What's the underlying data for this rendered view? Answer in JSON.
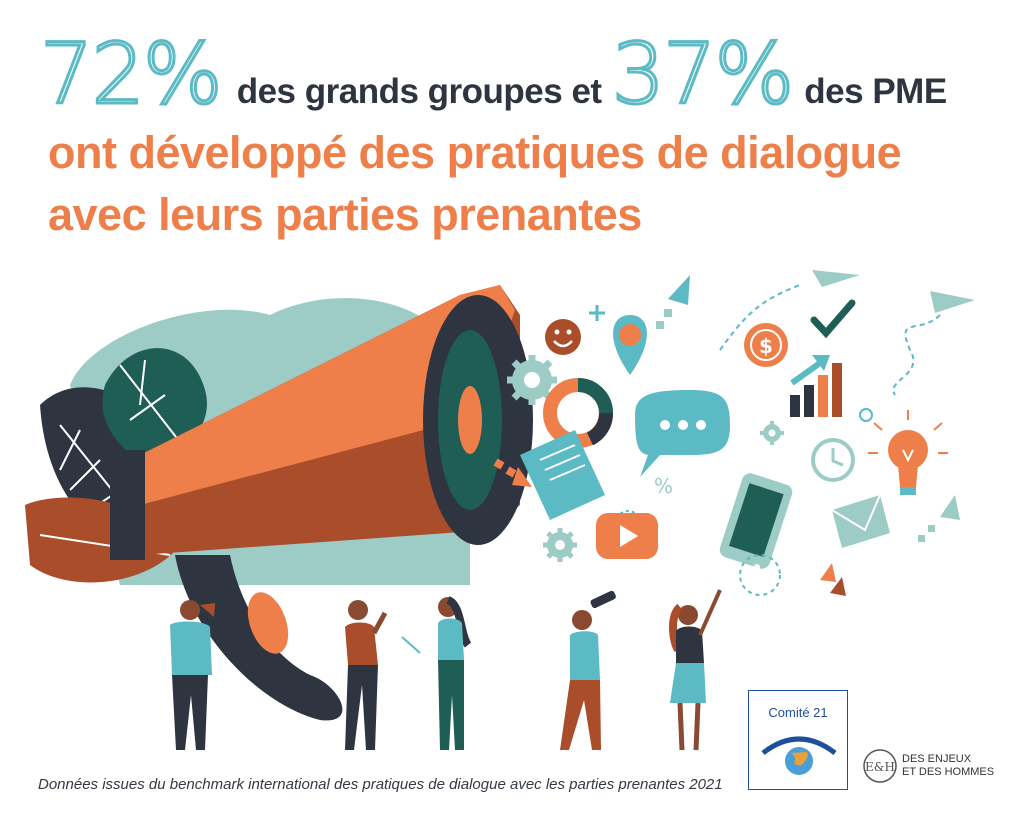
{
  "headline": {
    "pct_large": "72%",
    "text_large": "des grands groupes et",
    "pct_sme": "37%",
    "text_sme": "des PME",
    "line2": "ont développé des pratiques de dialogue",
    "line3": "avec leurs parties prenantes"
  },
  "illustration": {
    "icons": [
      "megaphone",
      "smiley-icon",
      "location-pin-icon",
      "gear-icon",
      "donut-chart-icon",
      "document-icon",
      "chat-bubble-icon",
      "percent-icon",
      "play-button-icon",
      "dollar-icon",
      "bar-chart-icon",
      "checkmark-icon",
      "paper-plane-icon",
      "clock-icon",
      "lightbulb-icon",
      "envelope-icon",
      "smartphone-icon"
    ],
    "colors": {
      "teal": "#5bbac3",
      "orange": "#ee7f4a",
      "dark": "#2f3540",
      "green": "#1e5e55",
      "rust": "#a94d2b"
    }
  },
  "footer": {
    "source": "Données issues du benchmark international des pratiques de dialogue avec les parties prenantes 2021",
    "logo_comite": "Comité 21",
    "logo_eh_mark": "E&H",
    "logo_eh_line1": "DES ENJEUX",
    "logo_eh_line2": "ET DES HOMMES"
  }
}
